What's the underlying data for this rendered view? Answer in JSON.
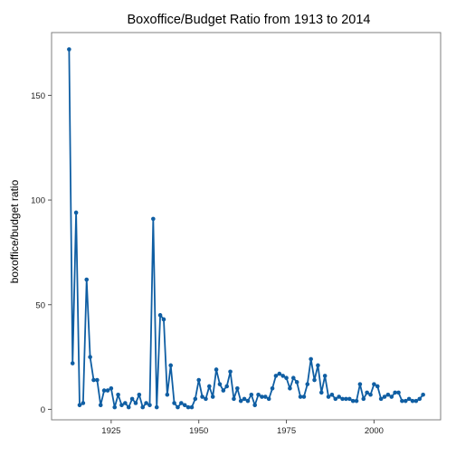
{
  "chart_data": {
    "type": "line",
    "title": "Boxoffice/Budget Ratio from 1913 to 2014",
    "xlabel": "",
    "ylabel": "boxoffice/budget ratio",
    "xlim": [
      1908,
      2019
    ],
    "ylim": [
      -5,
      180
    ],
    "xticks": [
      1925,
      1950,
      1975,
      2000
    ],
    "yticks": [
      0,
      50,
      100,
      150
    ],
    "grid": true,
    "series": [
      {
        "color": "#0f5ea3",
        "points": [
          [
            1913,
            172
          ],
          [
            1914,
            22
          ],
          [
            1915,
            94
          ],
          [
            1916,
            2
          ],
          [
            1917,
            3
          ],
          [
            1918,
            62
          ],
          [
            1919,
            25
          ],
          [
            1920,
            14
          ],
          [
            1921,
            14
          ],
          [
            1922,
            2
          ],
          [
            1923,
            9
          ],
          [
            1924,
            9
          ],
          [
            1925,
            10
          ],
          [
            1926,
            1
          ],
          [
            1927,
            7
          ],
          [
            1928,
            2
          ],
          [
            1929,
            3
          ],
          [
            1930,
            1
          ],
          [
            1931,
            5
          ],
          [
            1932,
            3
          ],
          [
            1933,
            7
          ],
          [
            1934,
            1
          ],
          [
            1935,
            3
          ],
          [
            1936,
            2
          ],
          [
            1937,
            91
          ],
          [
            1938,
            1
          ],
          [
            1939,
            45
          ],
          [
            1940,
            43
          ],
          [
            1941,
            7
          ],
          [
            1942,
            21
          ],
          [
            1943,
            3
          ],
          [
            1944,
            1
          ],
          [
            1945,
            3
          ],
          [
            1946,
            2
          ],
          [
            1947,
            1
          ],
          [
            1948,
            1
          ],
          [
            1949,
            5
          ],
          [
            1950,
            14
          ],
          [
            1951,
            6
          ],
          [
            1952,
            5
          ],
          [
            1953,
            11
          ],
          [
            1954,
            6
          ],
          [
            1955,
            19
          ],
          [
            1956,
            12
          ],
          [
            1957,
            9
          ],
          [
            1958,
            11
          ],
          [
            1959,
            18
          ],
          [
            1960,
            5
          ],
          [
            1961,
            10
          ],
          [
            1962,
            4
          ],
          [
            1963,
            5
          ],
          [
            1964,
            4
          ],
          [
            1965,
            7
          ],
          [
            1966,
            2
          ],
          [
            1967,
            7
          ],
          [
            1968,
            6
          ],
          [
            1969,
            6
          ],
          [
            1970,
            5
          ],
          [
            1971,
            10
          ],
          [
            1972,
            16
          ],
          [
            1973,
            17
          ],
          [
            1974,
            16
          ],
          [
            1975,
            15
          ],
          [
            1976,
            10
          ],
          [
            1977,
            15
          ],
          [
            1978,
            13
          ],
          [
            1979,
            6
          ],
          [
            1980,
            6
          ],
          [
            1981,
            12
          ],
          [
            1982,
            24
          ],
          [
            1983,
            14
          ],
          [
            1984,
            21
          ],
          [
            1985,
            8
          ],
          [
            1986,
            16
          ],
          [
            1987,
            6
          ],
          [
            1988,
            7
          ],
          [
            1989,
            5
          ],
          [
            1990,
            6
          ],
          [
            1991,
            5
          ],
          [
            1992,
            5
          ],
          [
            1993,
            5
          ],
          [
            1994,
            4
          ],
          [
            1995,
            4
          ],
          [
            1996,
            12
          ],
          [
            1997,
            5
          ],
          [
            1998,
            8
          ],
          [
            1999,
            7
          ],
          [
            2000,
            12
          ],
          [
            2001,
            11
          ],
          [
            2002,
            5
          ],
          [
            2003,
            6
          ],
          [
            2004,
            7
          ],
          [
            2005,
            6
          ],
          [
            2006,
            8
          ],
          [
            2007,
            8
          ],
          [
            2008,
            4
          ],
          [
            2009,
            4
          ],
          [
            2010,
            5
          ],
          [
            2011,
            4
          ],
          [
            2012,
            4
          ],
          [
            2013,
            5
          ],
          [
            2014,
            7
          ]
        ]
      }
    ]
  }
}
